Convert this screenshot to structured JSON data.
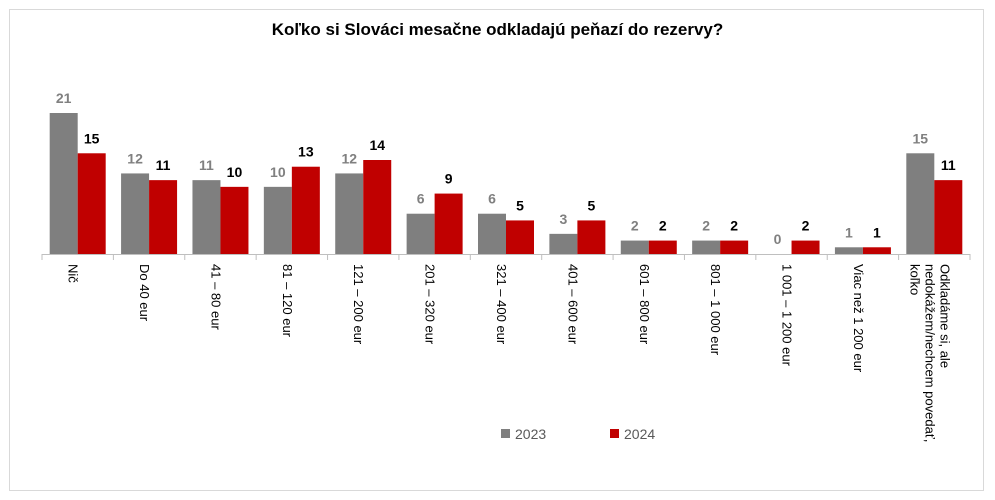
{
  "chart_data": {
    "type": "bar",
    "title": "Koľko si Slováci mesačne odkladajú peňazí do rezervy?",
    "categories": [
      "Nič",
      "Do 40 eur",
      "41 – 80 eur",
      "81 – 120 eur",
      "121 – 200 eur",
      "201 – 320 eur",
      "321 – 400 eur",
      "401 – 600 eur",
      "601 – 800 eur",
      "801 – 1 000 eur",
      "1 001 – 1 200 eur",
      "Viac než 1 200 eur",
      "Odkladáme si, ale nedokážem/nechcem povedať, koľko"
    ],
    "series": [
      {
        "name": "2023",
        "color": "#7f7f7f",
        "label_color": "#808080",
        "values": [
          21,
          12,
          11,
          10,
          12,
          6,
          6,
          3,
          2,
          2,
          0,
          1,
          15
        ]
      },
      {
        "name": "2024",
        "color": "#c00000",
        "label_color": "#000000",
        "values": [
          15,
          11,
          10,
          13,
          14,
          9,
          5,
          5,
          2,
          2,
          2,
          1,
          11
        ]
      }
    ],
    "ylim": [
      0,
      21
    ],
    "grid": false,
    "legend_position": "bottom"
  }
}
